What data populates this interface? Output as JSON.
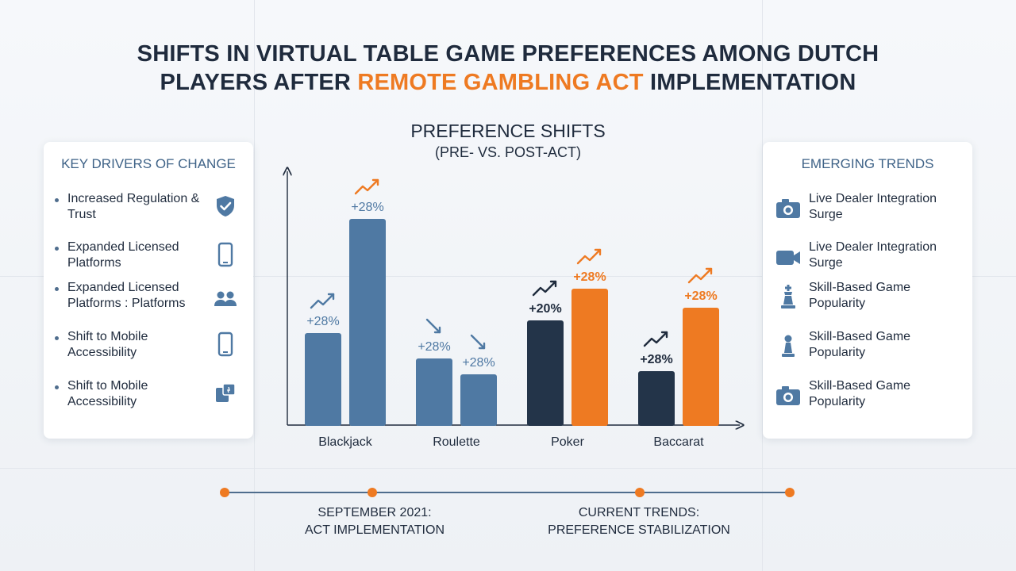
{
  "title": {
    "line1": "SHIFTS IN VIRTUAL TABLE GAME PREFERENCES AMONG DUTCH",
    "line2_pre": "PLAYERS AFTER ",
    "line2_highlight": "REMOTE GAMBLING ACT",
    "line2_post": " IMPLEMENTATION"
  },
  "chart_data": {
    "type": "bar",
    "title": "PREFERENCE SHIFTS",
    "subtitle": "(PRE- VS. POST-ACT)",
    "categories": [
      "Blackjack",
      "Roulette",
      "Poker",
      "Baccarat"
    ],
    "series": [
      {
        "values": [
          29,
          21,
          33,
          17
        ],
        "labels": [
          "+28%",
          "+28%",
          "+20%",
          "+28%"
        ],
        "trend": [
          "up",
          "down",
          "up",
          "up"
        ]
      },
      {
        "values": [
          65,
          16,
          43,
          37
        ],
        "labels": [
          "+28%",
          "+28%",
          "+28%",
          "+28%"
        ],
        "trend": [
          "up",
          "down",
          "up",
          "up"
        ]
      }
    ],
    "ylim": [
      0,
      80
    ],
    "grid": false,
    "colors": {
      "pre": [
        "#4f79a3",
        "#4f79a3",
        "#233449",
        "#233449"
      ],
      "post": [
        "#4f79a3",
        "#4f79a3",
        "#ee7a22",
        "#ee7a22"
      ],
      "label_pre": [
        "#4f79a3",
        "#4f79a3",
        "#1f2b3d",
        "#1f2b3d"
      ],
      "label_post": [
        "#4f79a3",
        "#4f79a3",
        "#ee7a22",
        "#ee7a22"
      ]
    }
  },
  "drivers": {
    "title": "KEY DRIVERS OF CHANGE",
    "items": [
      {
        "label": "Increased Regulation & Trust",
        "icon": "shield-check-icon"
      },
      {
        "label": "Expanded Licensed Platforms",
        "icon": "smartphone-icon"
      },
      {
        "label": "Expanded Licensed Platforms : Platforms",
        "icon": "users-icon"
      },
      {
        "label": "Shift to Mobile Accessibility",
        "icon": "smartphone-icon"
      },
      {
        "label": "Shift to Mobile Accessibility",
        "icon": "mobile-app-icon"
      }
    ]
  },
  "trends": {
    "title": "EMERGING TRENDS",
    "items": [
      {
        "label": "Live Dealer Integration Surge",
        "icon": "camera-icon"
      },
      {
        "label": "Live Dealer Integration Surge",
        "icon": "video-camera-icon"
      },
      {
        "label": "Skill-Based Game Popularity",
        "icon": "chess-king-icon"
      },
      {
        "label": "Skill-Based Game Popularity",
        "icon": "chess-pawn-icon"
      },
      {
        "label": "Skill-Based Game Popularity",
        "icon": "camera-icon"
      }
    ]
  },
  "timeline": {
    "left_line1": "SEPTEMBER 2021:",
    "left_line2": "ACT IMPLEMENTATION",
    "right_line1": "CURRENT TRENDS:",
    "right_line2": "PREFERENCE STABILIZATION",
    "accent": "#ee7a22",
    "line_color": "#4f6d8d"
  }
}
